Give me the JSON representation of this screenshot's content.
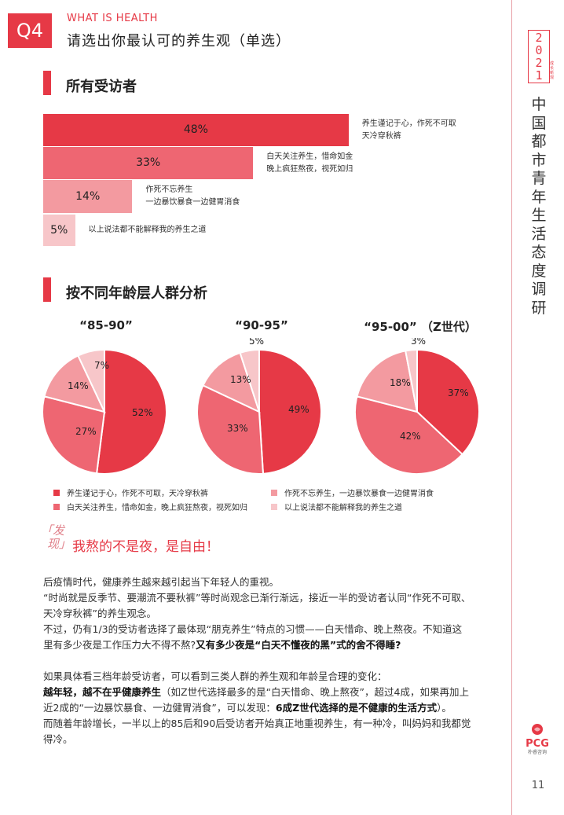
{
  "header": {
    "badge": "Q4",
    "eyebrow": "WHAT IS HEALTH",
    "title": "请选出你最认可的养生观（单选）"
  },
  "section_all": {
    "title": "所有受访者"
  },
  "colors": {
    "s1": "#e63946",
    "s2": "#ee6672",
    "s3": "#f39aa0",
    "s4": "#f7c6c9",
    "accent": "#e63946"
  },
  "chart_data": [
    {
      "type": "bar",
      "orientation": "horizontal",
      "categories": [
        "养生谨记于心，作死不可取 天冷穿秋裤",
        "白天关注养生，惜命如金 晚上疯狂熬夜，视死如归",
        "作死不忘养生 一边暴饮暴食一边健胃消食",
        "以上说法都不能解释我的养生之道"
      ],
      "values": [
        48,
        33,
        14,
        5
      ],
      "value_labels": [
        "48%",
        "33%",
        "14%",
        "5%"
      ],
      "label_lines": [
        [
          "养生谨记于心，作死不可取",
          "天冷穿秋裤"
        ],
        [
          "白天关注养生，惜命如金",
          "晚上疯狂熬夜，视死如归"
        ],
        [
          "作死不忘养生",
          "一边暴饮暴食一边健胃消食"
        ],
        [
          "以上说法都不能解释我的养生之道"
        ]
      ]
    },
    {
      "type": "pie",
      "title": "“85-90”",
      "values": [
        52,
        27,
        14,
        7
      ],
      "labels": [
        "52%",
        "27%",
        "14%",
        "7%"
      ]
    },
    {
      "type": "pie",
      "title": "“90-95”",
      "values": [
        49,
        33,
        13,
        5
      ],
      "labels": [
        "49%",
        "33%",
        "13%",
        "5%"
      ]
    },
    {
      "type": "pie",
      "title": "“95-00”  （Z世代）",
      "values": [
        37,
        42,
        18,
        3
      ],
      "labels": [
        "37%",
        "42%",
        "18%",
        "3%"
      ]
    }
  ],
  "section_age": {
    "title": "按不同年龄层人群分析"
  },
  "legend": [
    "养生谨记于心，作死不可取，天冷穿秋裤",
    "作死不忘养生，一边暴饮暴食一边健胃消食",
    "白天关注养生，惜命如金，晚上疯狂熬夜，视死如归",
    "以上说法都不能解释我的养生之道"
  ],
  "finding": {
    "tag_line1": "「发",
    "tag_line2": "现」",
    "title": "我熬的不是夜，是自由！"
  },
  "body": {
    "p1": "后疫情时代，健康养生越来越引起当下年轻人的重视。",
    "p2": "“时尚就是反季节、要潮流不要秋裤”等时尚观念已渐行渐远，接近一半的受访者认同“作死不可取、天冷穿秋裤”的养生观念。",
    "p3a": "不过，仍有1/3的受访者选择了最体现“朋克养生”特点的习惯——白天惜命、晚上熬夜。不知道这里有多少夜是工作压力大不得不熬?",
    "p3b": "又有多少夜是“白天不懂夜的黑”式的舍不得睡?",
    "p4": "如果具体看三档年龄受访者，可以看到三类人群的养生观和年龄呈合理的变化：",
    "p5a": "越年轻，越不在乎健康养生",
    "p5b": "（如Z世代选择最多的是“白天惜命、晚上熬夜”，超过4成，如果再加上近2成的“一边暴饮暴食、一边健胃消食”，可以发现：",
    "p5c": "6成Z世代选择的是不健康的生活方式",
    "p5d": "）。",
    "p6": "而随着年龄增长，一半以上的85后和90后受访者开始真正地重视养生，有一种冷，叫妈妈和我都觉得冷。"
  },
  "sidebar": {
    "year_chars": [
      "2",
      "0",
      "2",
      "1"
    ],
    "year_sub": "成长新观",
    "title_chars": [
      "中",
      "国",
      "都",
      "市",
      "青",
      "年",
      "生",
      "活",
      "态",
      "度",
      "调",
      "研"
    ],
    "logo_text": "PCG",
    "logo_sub": "朴睿咨询",
    "page_number": "11"
  }
}
